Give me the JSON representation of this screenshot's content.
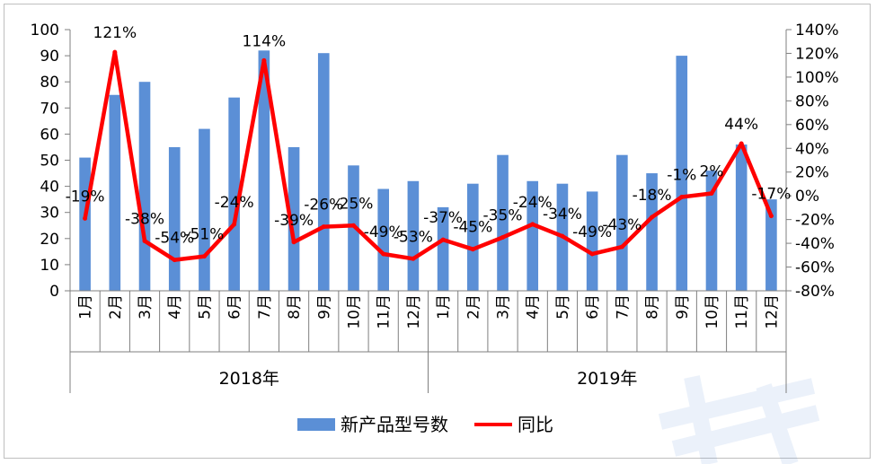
{
  "chart_data": {
    "type": "bar+line",
    "groups": [
      {
        "label": "2018年",
        "months": [
          "1月",
          "2月",
          "3月",
          "4月",
          "5月",
          "6月",
          "7月",
          "8月",
          "9月",
          "10月",
          "11月",
          "12月"
        ]
      },
      {
        "label": "2019年",
        "months": [
          "1月",
          "2月",
          "3月",
          "4月",
          "5月",
          "6月",
          "7月",
          "8月",
          "9月",
          "10月",
          "11月",
          "12月"
        ]
      }
    ],
    "series": [
      {
        "name": "新产品型号数",
        "type": "bar",
        "axis": "left",
        "color": "#5B8FD6",
        "values": [
          51,
          75,
          80,
          55,
          62,
          74,
          92,
          55,
          91,
          48,
          39,
          42,
          32,
          41,
          52,
          42,
          41,
          38,
          52,
          45,
          90,
          46,
          56,
          35
        ]
      },
      {
        "name": "同比",
        "type": "line",
        "axis": "right",
        "color": "#FF0000",
        "values": [
          -19,
          121,
          -38,
          -54,
          -51,
          -24,
          114,
          -39,
          -26,
          -25,
          -49,
          -53,
          -37,
          -45,
          -35,
          -24,
          -34,
          -49,
          -43,
          -18,
          -1,
          2,
          44,
          -17
        ],
        "labels": [
          "-19%",
          "121%",
          "-38%",
          "-54%",
          "-51%",
          "-24%",
          "114%",
          "-39%",
          "-26%",
          "-25%",
          "-49%",
          "-53%",
          "-37%",
          "-45%",
          "-35%",
          "-24%",
          "-34%",
          "-49%",
          "-43%",
          "-18%",
          "-1%",
          "2%",
          "44%",
          "-17%"
        ]
      }
    ],
    "y_left": {
      "min": 0,
      "max": 100,
      "ticks": [
        "0",
        "10",
        "20",
        "30",
        "40",
        "50",
        "60",
        "70",
        "80",
        "90",
        "100"
      ]
    },
    "y_right": {
      "min": -80,
      "max": 140,
      "ticks": [
        "-80%",
        "-60%",
        "-40%",
        "-20%",
        "0%",
        "20%",
        "40%",
        "60%",
        "80%",
        "100%",
        "120%",
        "140%"
      ]
    },
    "legend": {
      "position": "bottom",
      "items": [
        "新产品型号数",
        "同比"
      ]
    }
  }
}
